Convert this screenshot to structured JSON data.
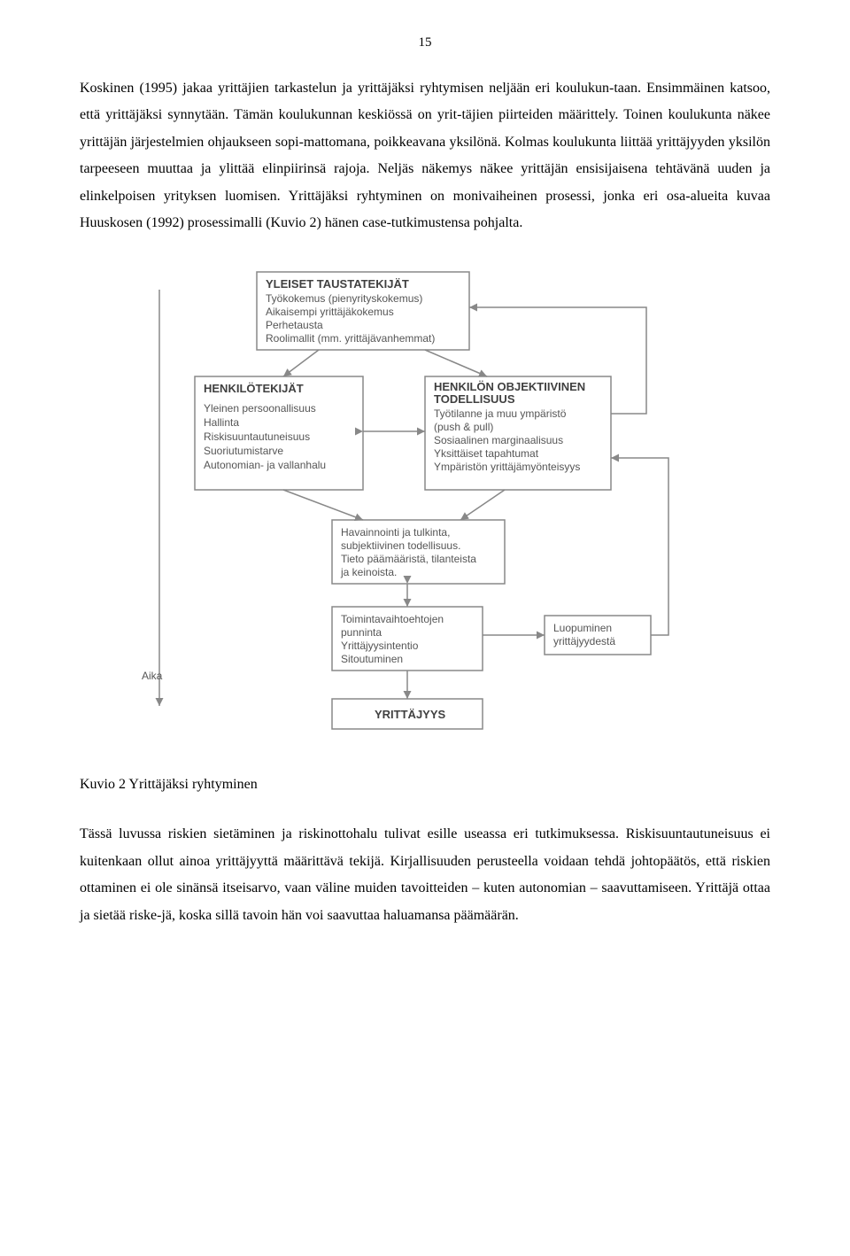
{
  "page_number": "15",
  "paragraph1": "Koskinen (1995) jakaa yrittäjien tarkastelun ja yrittäjäksi ryhtymisen neljään eri koulukun-taan. Ensimmäinen katsoo, että yrittäjäksi synnytään. Tämän koulukunnan keskiössä on yrit-täjien piirteiden määrittely. Toinen koulukunta näkee yrittäjän järjestelmien ohjaukseen sopi-mattomana, poikkeavana yksilönä. Kolmas koulukunta liittää yrittäjyyden yksilön tarpeeseen muuttaa ja ylittää elinpiirinsä rajoja. Neljäs näkemys näkee yrittäjän ensisijaisena tehtävänä uuden ja elinkelpoisen yrityksen luomisen. Yrittäjäksi ryhtyminen on monivaiheinen prosessi, jonka eri osa-alueita kuvaa Huuskosen (1992) prosessimalli (Kuvio 2) hänen case-tutkimustensa pohjalta.",
  "diagram": {
    "type": "flowchart",
    "background_color": "#ffffff",
    "box_fill": "#ffffff",
    "box_stroke": "#888888",
    "box_stroke_width": 1.5,
    "title_fontsize": 13,
    "text_fontsize": 12,
    "font_family": "Arial",
    "text_color": "#555555",
    "arrow_stroke": "#888888",
    "arrow_stroke_width": 1.5,
    "axis_label": "Aika",
    "nodes": {
      "bg_factors": {
        "title": "YLEISET TAUSTATEKIJÄT",
        "lines": [
          "Työkokemus (pienyrityskokemus)",
          "Aikaisempi yrittäjäkokemus",
          "Perhetausta",
          "Roolimallit (mm. yrittäjävanhemmat)"
        ]
      },
      "person_factors": {
        "title": "HENKILÖTEKIJÄT",
        "lines": [
          "Yleinen persoonallisuus",
          "Hallinta",
          "Riskisuuntautuneisuus",
          "Suoriutumistarve",
          "Autonomian- ja vallanhalu"
        ]
      },
      "obj_reality": {
        "title": "HENKILÖN OBJEKTIIVINEN",
        "title2": "TODELLISUUS",
        "lines": [
          "Työtilanne ja muu ympäristö",
          "(push & pull)",
          "Sosiaalinen marginaalisuus",
          "Yksittäiset tapahtumat",
          "Ympäristön yrittäjämyönteisyys"
        ]
      },
      "perception": {
        "lines": [
          "Havainnointi ja tulkinta,",
          "subjektiivinen todellisuus.",
          "Tieto päämääristä, tilanteista",
          "ja keinoista."
        ]
      },
      "weighing": {
        "lines": [
          "Toimintavaihtoehtojen",
          "punninta",
          "Yrittäjyysintentio",
          "Sitoutuminen"
        ]
      },
      "abandon": {
        "lines": [
          "Luopuminen",
          "yrittäjyydestä"
        ]
      },
      "entrepreneurship": {
        "title": "YRITTÄJYYS"
      }
    }
  },
  "caption": "Kuvio 2 Yrittäjäksi ryhtyminen",
  "paragraph2": "Tässä luvussa riskien sietäminen ja riskinottohalu tulivat esille useassa eri tutkimuksessa. Riskisuuntautuneisuus ei kuitenkaan ollut ainoa yrittäjyyttä määrittävä tekijä. Kirjallisuuden perusteella voidaan tehdä johtopäätös, että riskien ottaminen ei ole sinänsä itseisarvo, vaan väline muiden tavoitteiden – kuten autonomian – saavuttamiseen. Yrittäjä ottaa ja sietää riske-jä, koska sillä tavoin hän voi saavuttaa haluamansa päämäärän."
}
